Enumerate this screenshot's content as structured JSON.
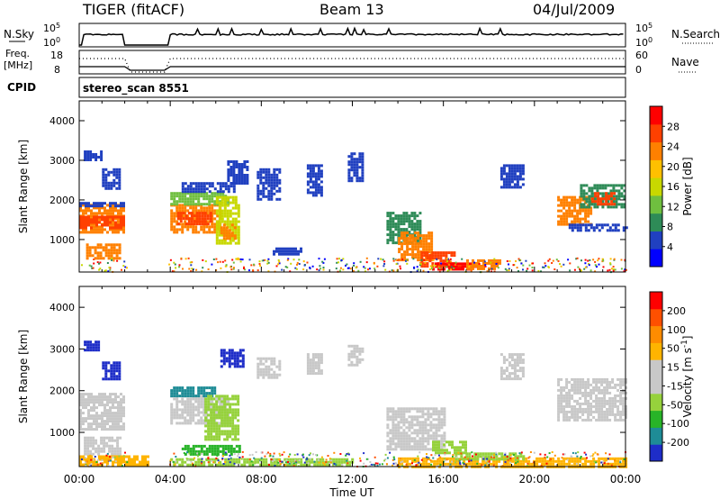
{
  "header": {
    "left_title": "TIGER (fitACF)",
    "center_title": "Beam 13",
    "date": "04/Jul/2009"
  },
  "strips": {
    "nsky": {
      "label": "N.Sky",
      "ticks_left": [
        "10^5",
        "10^0"
      ],
      "ticks_right": [
        "10^5",
        "10^0"
      ],
      "right_label": "N.Search"
    },
    "freq": {
      "label_line1": "Freq.",
      "label_line2": "[MHz]",
      "ticks_left": [
        "18",
        "8"
      ],
      "ticks_right": [
        "60",
        "0"
      ],
      "right_label": "Nave"
    },
    "cpid": {
      "label": "CPID",
      "value": "stereo_scan 8551"
    }
  },
  "colors": {
    "power_scale": [
      "#0000ff",
      "#2040c0",
      "#2e8b57",
      "#6fbf3f",
      "#c8d800",
      "#ffc000",
      "#ff8000",
      "#ff4000",
      "#ff0000"
    ],
    "velocity_scale": [
      "#1e2dc8",
      "#1e8c96",
      "#28b428",
      "#96d23c",
      "#c8c8c8",
      "#c8c8c8",
      "#ffb400",
      "#ff8c00",
      "#ff5000",
      "#ff0000"
    ]
  },
  "chart_data": [
    {
      "type": "heatmap",
      "title": "Power",
      "xlabel": "",
      "ylabel": "Slant Range [km]",
      "colorbar_label": "Power [dB]",
      "colorbar_ticks": [
        "28",
        "24",
        "20",
        "16",
        "12",
        "8",
        "4"
      ],
      "x_ticks": [
        "00:00",
        "04:00",
        "08:00",
        "12:00",
        "16:00",
        "20:00",
        "00:00"
      ],
      "y_ticks": [
        "1000",
        "2000",
        "3000",
        "4000"
      ],
      "xlim": [
        0,
        24
      ],
      "ylim": [
        180,
        4500
      ],
      "blobs": [
        {
          "t0": 0.0,
          "t1": 2.0,
          "r0": 1150,
          "r1": 1900,
          "c": "#ff8000"
        },
        {
          "t0": 0.0,
          "t1": 2.0,
          "r0": 1300,
          "r1": 1600,
          "c": "#ff4000"
        },
        {
          "t0": 0.0,
          "t1": 2.0,
          "r0": 1850,
          "r1": 1950,
          "c": "#2040c0"
        },
        {
          "t0": 0.3,
          "t1": 1.8,
          "r0": 500,
          "r1": 900,
          "c": "#ff8000"
        },
        {
          "t0": 0.2,
          "t1": 1.0,
          "r0": 3000,
          "r1": 3250,
          "c": "#2040c0"
        },
        {
          "t0": 1.0,
          "t1": 1.8,
          "r0": 2300,
          "r1": 2800,
          "c": "#2040c0"
        },
        {
          "t0": 4.0,
          "t1": 6.2,
          "r0": 1200,
          "r1": 1900,
          "c": "#ff8000"
        },
        {
          "t0": 4.3,
          "t1": 5.8,
          "r0": 1400,
          "r1": 1700,
          "c": "#ff4000"
        },
        {
          "t0": 4.0,
          "t1": 6.5,
          "r0": 1900,
          "r1": 2200,
          "c": "#6fbf3f"
        },
        {
          "t0": 4.5,
          "t1": 6.8,
          "r0": 2200,
          "r1": 2450,
          "c": "#2040c0"
        },
        {
          "t0": 6.0,
          "t1": 7.0,
          "r0": 900,
          "r1": 2100,
          "c": "#c8d800"
        },
        {
          "t0": 6.2,
          "t1": 6.8,
          "r0": 1000,
          "r1": 1400,
          "c": "#ff8000"
        },
        {
          "t0": 6.5,
          "t1": 7.4,
          "r0": 2400,
          "r1": 3000,
          "c": "#2040c0"
        },
        {
          "t0": 7.8,
          "t1": 8.8,
          "r0": 2000,
          "r1": 2800,
          "c": "#2040c0"
        },
        {
          "t0": 8.5,
          "t1": 9.8,
          "r0": 600,
          "r1": 800,
          "c": "#2040c0"
        },
        {
          "t0": 10.0,
          "t1": 10.6,
          "r0": 2100,
          "r1": 2900,
          "c": "#2040c0"
        },
        {
          "t0": 11.8,
          "t1": 12.4,
          "r0": 2500,
          "r1": 3200,
          "c": "#2040c0"
        },
        {
          "t0": 13.5,
          "t1": 15.0,
          "r0": 900,
          "r1": 1700,
          "c": "#2e8b57"
        },
        {
          "t0": 14.0,
          "t1": 15.5,
          "r0": 500,
          "r1": 1200,
          "c": "#ff8000"
        },
        {
          "t0": 15.0,
          "t1": 16.5,
          "r0": 350,
          "r1": 700,
          "c": "#ff4000"
        },
        {
          "t0": 15.5,
          "t1": 17.5,
          "r0": 230,
          "r1": 420,
          "c": "#ff0000"
        },
        {
          "t0": 17.0,
          "t1": 18.5,
          "r0": 250,
          "r1": 500,
          "c": "#ff8000"
        },
        {
          "t0": 18.5,
          "t1": 19.5,
          "r0": 2300,
          "r1": 2900,
          "c": "#2040c0"
        },
        {
          "t0": 21.0,
          "t1": 22.5,
          "r0": 1400,
          "r1": 2100,
          "c": "#ff8000"
        },
        {
          "t0": 22.0,
          "t1": 24.0,
          "r0": 1800,
          "r1": 2400,
          "c": "#2e8b57"
        },
        {
          "t0": 22.5,
          "t1": 23.5,
          "r0": 1900,
          "r1": 2200,
          "c": "#ff4000"
        },
        {
          "t0": 21.5,
          "t1": 24.0,
          "r0": 1200,
          "r1": 1400,
          "c": "#2040c0"
        }
      ]
    },
    {
      "type": "heatmap",
      "title": "Velocity",
      "xlabel": "Time UT",
      "ylabel": "Slant Range [km]",
      "colorbar_label": "Velocity [m s^-1]",
      "colorbar_ticks": [
        "200",
        "100",
        "50",
        "15",
        "-15",
        "-50",
        "-100",
        "-200"
      ],
      "x_ticks": [
        "00:00",
        "04:00",
        "08:00",
        "12:00",
        "16:00",
        "20:00",
        "00:00"
      ],
      "y_ticks": [
        "1000",
        "2000",
        "3000",
        "4000"
      ],
      "xlim": [
        0,
        24
      ],
      "ylim": [
        180,
        4500
      ],
      "blobs": [
        {
          "t0": 0.0,
          "t1": 2.0,
          "r0": 1100,
          "r1": 1950,
          "c": "#c8c8c8"
        },
        {
          "t0": 0.2,
          "t1": 1.8,
          "r0": 500,
          "r1": 900,
          "c": "#c8c8c8"
        },
        {
          "t0": 0.2,
          "t1": 0.8,
          "r0": 3000,
          "r1": 3200,
          "c": "#1e2dc8"
        },
        {
          "t0": 1.0,
          "t1": 1.8,
          "r0": 2300,
          "r1": 2700,
          "c": "#1e2dc8"
        },
        {
          "t0": 4.0,
          "t1": 6.5,
          "r0": 1200,
          "r1": 1900,
          "c": "#c8c8c8"
        },
        {
          "t0": 4.0,
          "t1": 6.0,
          "r0": 1900,
          "r1": 2100,
          "c": "#1e8c96"
        },
        {
          "t0": 5.5,
          "t1": 7.0,
          "r0": 800,
          "r1": 1900,
          "c": "#96d23c"
        },
        {
          "t0": 4.5,
          "t1": 7.0,
          "r0": 500,
          "r1": 700,
          "c": "#28b428"
        },
        {
          "t0": 6.2,
          "t1": 7.2,
          "r0": 2600,
          "r1": 3000,
          "c": "#1e2dc8"
        },
        {
          "t0": 7.8,
          "t1": 8.8,
          "r0": 2300,
          "r1": 2800,
          "c": "#c8c8c8"
        },
        {
          "t0": 10.0,
          "t1": 10.6,
          "r0": 2400,
          "r1": 2900,
          "c": "#c8c8c8"
        },
        {
          "t0": 11.8,
          "t1": 12.4,
          "r0": 2600,
          "r1": 3100,
          "c": "#c8c8c8"
        },
        {
          "t0": 13.5,
          "t1": 16.0,
          "r0": 600,
          "r1": 1600,
          "c": "#c8c8c8"
        },
        {
          "t0": 15.5,
          "t1": 17.0,
          "r0": 500,
          "r1": 800,
          "c": "#96d23c"
        },
        {
          "t0": 14.0,
          "t1": 24.0,
          "r0": 200,
          "r1": 400,
          "c": "#ffb400"
        },
        {
          "t0": 16.5,
          "t1": 19.5,
          "r0": 380,
          "r1": 520,
          "c": "#96d23c"
        },
        {
          "t0": 18.5,
          "t1": 19.5,
          "r0": 2300,
          "r1": 2900,
          "c": "#c8c8c8"
        },
        {
          "t0": 21.0,
          "t1": 24.0,
          "r0": 1300,
          "r1": 2300,
          "c": "#c8c8c8"
        },
        {
          "t0": 0.0,
          "t1": 3.0,
          "r0": 200,
          "r1": 450,
          "c": "#ffb400"
        },
        {
          "t0": 4.0,
          "t1": 12.0,
          "r0": 200,
          "r1": 380,
          "c": "#96d23c"
        }
      ]
    }
  ]
}
